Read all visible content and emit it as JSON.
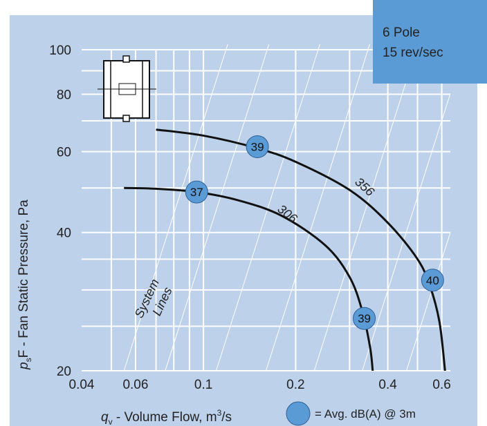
{
  "info_box": {
    "line1": "6 Pole",
    "line2": "15 rev/sec",
    "color": "#5b9bd5"
  },
  "colors": {
    "background": "#bdd1ea",
    "grid": "#ffffff",
    "curve": "#111111",
    "bubble": "#5b9bd5",
    "box_fill": "#5b9bd5"
  },
  "icon": "fan-unit-icon",
  "system_lines_label": [
    "System",
    "Lines"
  ],
  "legend": {
    "text": "= Avg. dB(A) @ 3m"
  },
  "chart_data": {
    "type": "line",
    "xlabel_main": "q",
    "xlabel_sub": "v",
    "xlabel_rest": " - Volume Flow, m",
    "xlabel_sup": "3",
    "xlabel_end": "/s",
    "ylabel_main": "p",
    "ylabel_sub": "s",
    "ylabel_rest": "F - Fan Static Pressure, Pa",
    "x_scale": "log",
    "y_scale": "log",
    "xlim": [
      0.04,
      0.64
    ],
    "ylim": [
      20,
      100
    ],
    "x_ticks": [
      0.04,
      0.06,
      0.1,
      0.2,
      0.4,
      0.6
    ],
    "x_tick_labels": [
      "0.04",
      "0.06",
      "0.1",
      "0.2",
      "0.4",
      "0.6"
    ],
    "y_ticks": [
      20,
      40,
      60,
      80,
      100
    ],
    "y_tick_labels": [
      "20",
      "40",
      "60",
      "80",
      "100"
    ],
    "x_grid": [
      0.05,
      0.06,
      0.07,
      0.08,
      0.09,
      0.1,
      0.2,
      0.3,
      0.4,
      0.5,
      0.6
    ],
    "y_grid": [
      20,
      25,
      30,
      35,
      40,
      50,
      60,
      70,
      80,
      90,
      100
    ],
    "series": [
      {
        "name": "356",
        "points": [
          [
            0.07,
            67
          ],
          [
            0.1,
            65
          ],
          [
            0.15,
            61
          ],
          [
            0.2,
            57
          ],
          [
            0.3,
            49.5
          ],
          [
            0.4,
            42
          ],
          [
            0.5,
            35
          ],
          [
            0.55,
            30.5
          ],
          [
            0.59,
            25.5
          ],
          [
            0.615,
            20
          ]
        ]
      },
      {
        "name": "306",
        "points": [
          [
            0.055,
            50
          ],
          [
            0.07,
            49.8
          ],
          [
            0.095,
            49
          ],
          [
            0.13,
            47
          ],
          [
            0.18,
            43.5
          ],
          [
            0.25,
            37.5
          ],
          [
            0.3,
            32
          ],
          [
            0.33,
            27
          ],
          [
            0.35,
            22.5
          ],
          [
            0.357,
            20
          ]
        ]
      }
    ],
    "bubbles": [
      {
        "x": 0.15,
        "y": 61.5,
        "value": "39"
      },
      {
        "x": 0.095,
        "y": 49,
        "value": "37"
      },
      {
        "x": 0.56,
        "y": 31.5,
        "value": "40"
      },
      {
        "x": 0.335,
        "y": 26,
        "value": "39"
      }
    ],
    "system_line_x_at_20": [
      0.055,
      0.075,
      0.11,
      0.16,
      0.23,
      0.33,
      0.46
    ]
  }
}
